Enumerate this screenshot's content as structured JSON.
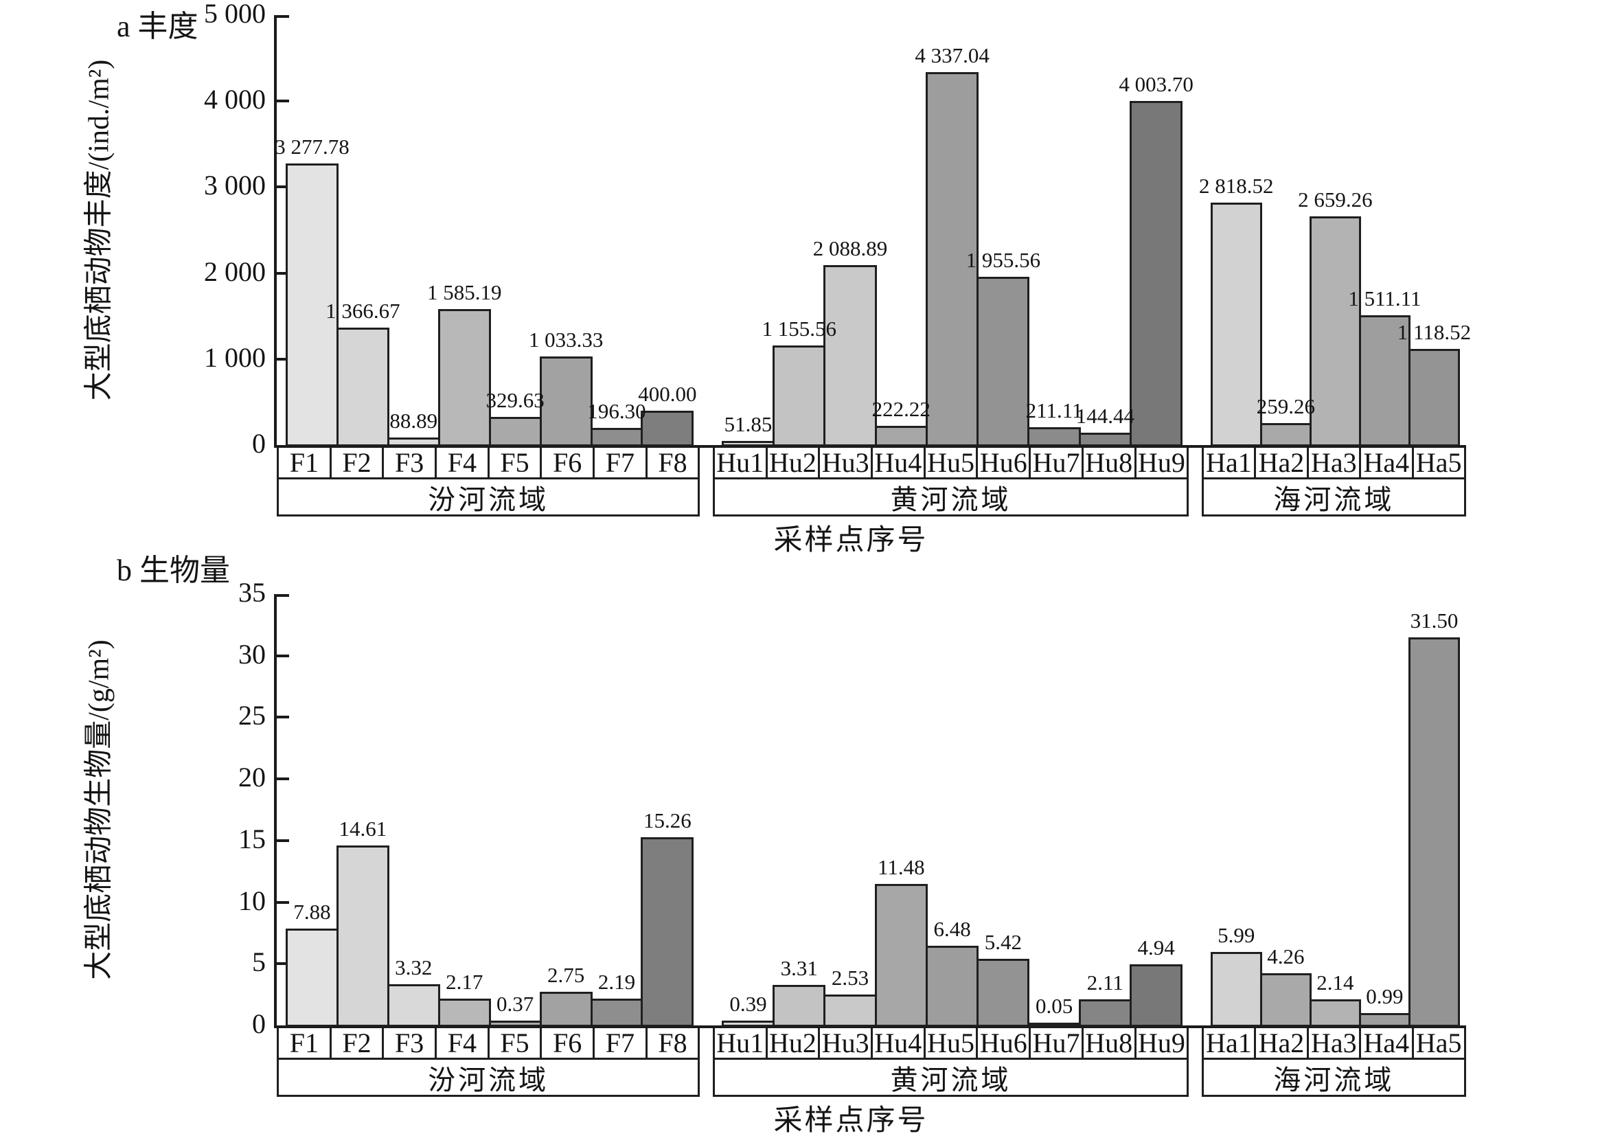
{
  "chart_data": [
    {
      "type": "bar",
      "panel_label": "a 丰度",
      "xlabel": "采样点序号",
      "ylabel": "大型底栖动物丰度/(ind./m²)",
      "ylim": [
        0,
        5000
      ],
      "grid": false,
      "legend": false,
      "yticks": [
        {
          "value": 5000,
          "label": "5 000"
        },
        {
          "value": 4000,
          "label": "4 000"
        },
        {
          "value": 3000,
          "label": "3 000"
        },
        {
          "value": 2000,
          "label": "2 000"
        },
        {
          "value": 1000,
          "label": "1 000"
        },
        {
          "value": 0,
          "label": "0"
        }
      ],
      "groups": [
        {
          "group_label": "汾河流域",
          "categories": [
            "F1",
            "F2",
            "F3",
            "F4",
            "F5",
            "F6",
            "F7",
            "F8"
          ],
          "values": [
            3277.78,
            1366.67,
            88.89,
            1585.19,
            329.63,
            1033.33,
            196.3,
            400.0
          ],
          "value_labels": [
            "3 277.78",
            "1 366.67",
            "88.89",
            "1 585.19",
            "329.63",
            "1 033.33",
            "196.30",
            "400.00"
          ],
          "colors": [
            "#e3e3e3",
            "#d6d6d6",
            "#d9d9d9",
            "#b8b8b8",
            "#a9a9a9",
            "#a2a2a2",
            "#8e8e8e",
            "#7e7e7e"
          ]
        },
        {
          "group_label": "黄河流域",
          "categories": [
            "Hu1",
            "Hu2",
            "Hu3",
            "Hu4",
            "Hu5",
            "Hu6",
            "Hu7",
            "Hu8",
            "Hu9"
          ],
          "values": [
            51.85,
            1155.56,
            2088.89,
            222.22,
            4337.04,
            1955.56,
            211.11,
            144.44,
            4003.7
          ],
          "value_labels": [
            "51.85",
            "1 155.56",
            "2 088.89",
            "222.22",
            "4 337.04",
            "1 955.56",
            "211.11",
            "144.44",
            "4 003.70"
          ],
          "colors": [
            "#d8d8d8",
            "#c3c3c3",
            "#c9c9c9",
            "#a7a7a7",
            "#9d9d9d",
            "#939393",
            "#8b8b8b",
            "#858585",
            "#787878"
          ]
        },
        {
          "group_label": "海河流域",
          "categories": [
            "Ha1",
            "Ha2",
            "Ha3",
            "Ha4",
            "Ha5"
          ],
          "values": [
            2818.52,
            259.26,
            2659.26,
            1511.11,
            1118.52
          ],
          "value_labels": [
            "2 818.52",
            "259.26",
            "2 659.26",
            "1 511.11",
            "1 118.52"
          ],
          "colors": [
            "#d2d2d2",
            "#a9a9a9",
            "#b3b3b3",
            "#9e9e9e",
            "#949494"
          ]
        }
      ]
    },
    {
      "type": "bar",
      "panel_label": "b 生物量",
      "xlabel": "采样点序号",
      "ylabel": "大型底栖动物生物量/(g/m²)",
      "ylim": [
        0,
        35
      ],
      "grid": false,
      "legend": false,
      "yticks": [
        {
          "value": 35,
          "label": "35"
        },
        {
          "value": 30,
          "label": "30"
        },
        {
          "value": 25,
          "label": "25"
        },
        {
          "value": 20,
          "label": "20"
        },
        {
          "value": 15,
          "label": "15"
        },
        {
          "value": 10,
          "label": "10"
        },
        {
          "value": 5,
          "label": "5"
        },
        {
          "value": 0,
          "label": "0"
        }
      ],
      "groups": [
        {
          "group_label": "汾河流域",
          "categories": [
            "F1",
            "F2",
            "F3",
            "F4",
            "F5",
            "F6",
            "F7",
            "F8"
          ],
          "values": [
            7.88,
            14.61,
            3.32,
            2.17,
            0.37,
            2.75,
            2.19,
            15.26
          ],
          "value_labels": [
            "7.88",
            "14.61",
            "3.32",
            "2.17",
            "0.37",
            "2.75",
            "2.19",
            "15.26"
          ],
          "colors": [
            "#e3e3e3",
            "#d6d6d6",
            "#d9d9d9",
            "#b8b8b8",
            "#a9a9a9",
            "#a2a2a2",
            "#8e8e8e",
            "#7e7e7e"
          ]
        },
        {
          "group_label": "黄河流域",
          "categories": [
            "Hu1",
            "Hu2",
            "Hu3",
            "Hu4",
            "Hu5",
            "Hu6",
            "Hu7",
            "Hu8",
            "Hu9"
          ],
          "values": [
            0.39,
            3.31,
            2.53,
            11.48,
            6.48,
            5.42,
            0.05,
            2.11,
            4.94
          ],
          "value_labels": [
            "0.39",
            "3.31",
            "2.53",
            "11.48",
            "6.48",
            "5.42",
            "0.05",
            "2.11",
            "4.94"
          ],
          "colors": [
            "#d8d8d8",
            "#c3c3c3",
            "#c9c9c9",
            "#a7a7a7",
            "#9d9d9d",
            "#939393",
            "#8b8b8b",
            "#858585",
            "#787878"
          ]
        },
        {
          "group_label": "海河流域",
          "categories": [
            "Ha1",
            "Ha2",
            "Ha3",
            "Ha4",
            "Ha5"
          ],
          "values": [
            5.99,
            4.26,
            2.14,
            0.99,
            31.5
          ],
          "value_labels": [
            "5.99",
            "4.26",
            "2.14",
            "0.99",
            "31.50"
          ],
          "colors": [
            "#d2d2d2",
            "#a9a9a9",
            "#b3b3b3",
            "#9e9e9e",
            "#949494"
          ]
        }
      ]
    }
  ]
}
